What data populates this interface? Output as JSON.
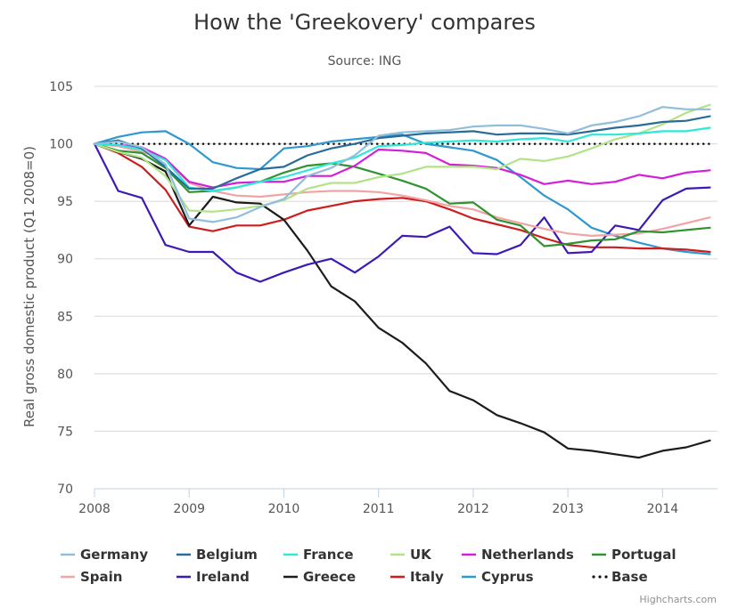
{
  "chart_data": {
    "type": "line",
    "title": "How the 'Greekovery' compares",
    "subtitle": "Source: ING",
    "ylabel": "Real gross domestic product (Q1 2008=0)",
    "xlabel": "",
    "x": [
      2008.0,
      2008.25,
      2008.5,
      2008.75,
      2009.0,
      2009.25,
      2009.5,
      2009.75,
      2010.0,
      2010.25,
      2010.5,
      2010.75,
      2011.0,
      2011.25,
      2011.5,
      2011.75,
      2012.0,
      2012.25,
      2012.5,
      2012.75,
      2013.0,
      2013.25,
      2013.5,
      2013.75,
      2014.0,
      2014.25,
      2014.5
    ],
    "xlim": [
      2008,
      2014.58
    ],
    "ylim": [
      70,
      105
    ],
    "x_ticks": [
      "2008",
      "2009",
      "2010",
      "2011",
      "2012",
      "2013",
      "2014"
    ],
    "y_ticks": [
      "70",
      "75",
      "80",
      "85",
      "90",
      "95",
      "100",
      "105"
    ],
    "grid": true,
    "legend_position": "bottom",
    "series": [
      {
        "name": "Germany",
        "color": "#90bedb",
        "values": [
          100,
          100.2,
          99.7,
          98.2,
          93.5,
          93.2,
          93.6,
          94.5,
          95.2,
          97.2,
          97.9,
          99,
          100.7,
          101,
          101.1,
          101.2,
          101.5,
          101.6,
          101.6,
          101.3,
          100.9,
          101.6,
          101.9,
          102.4,
          103.2,
          103,
          103
        ]
      },
      {
        "name": "Belgium",
        "color": "#2a6c99",
        "values": [
          100,
          100.3,
          99.6,
          98,
          96.1,
          96.1,
          97,
          97.8,
          98,
          99,
          99.6,
          100,
          100.5,
          100.7,
          100.9,
          101,
          101.1,
          100.8,
          100.9,
          100.9,
          100.8,
          101.1,
          101.4,
          101.6,
          101.9,
          102,
          102.4
        ]
      },
      {
        "name": "France",
        "color": "#2ee8d8",
        "values": [
          100,
          99.9,
          99.5,
          98.6,
          96.2,
          95.9,
          96.2,
          96.7,
          97.1,
          97.7,
          98.3,
          98.8,
          99.8,
          99.9,
          100.1,
          100.2,
          100.3,
          100.2,
          100.4,
          100.5,
          100.2,
          100.8,
          100.8,
          100.9,
          101.1,
          101.1,
          101.4
        ]
      },
      {
        "name": "UK",
        "color": "#b3e389",
        "values": [
          100,
          99.3,
          98.8,
          97.2,
          94.2,
          94.1,
          94.3,
          94.6,
          95.1,
          96.1,
          96.6,
          96.6,
          97.1,
          97.4,
          98,
          98,
          98,
          97.8,
          98.7,
          98.5,
          98.9,
          99.6,
          100.4,
          100.9,
          101.7,
          102.7,
          103.4
        ]
      },
      {
        "name": "Netherlands",
        "color": "#d21fd9",
        "values": [
          100,
          99.9,
          99.7,
          98.7,
          96.7,
          96.2,
          96.6,
          96.7,
          96.7,
          97.2,
          97.2,
          98.1,
          99.5,
          99.4,
          99.2,
          98.2,
          98.1,
          97.9,
          97.3,
          96.5,
          96.8,
          96.5,
          96.7,
          97.3,
          97,
          97.5,
          97.7
        ]
      },
      {
        "name": "Portugal",
        "color": "#2f932f",
        "values": [
          100,
          99.4,
          99.2,
          97.9,
          95.8,
          95.9,
          96.2,
          96.7,
          97.5,
          98.1,
          98.3,
          98,
          97.4,
          96.8,
          96.1,
          94.8,
          94.9,
          93.4,
          92.9,
          91.1,
          91.3,
          91.6,
          91.7,
          92.4,
          92.3,
          92.5,
          92.7
        ]
      },
      {
        "name": "Spain",
        "color": "#f0a4a4",
        "values": [
          100,
          99.8,
          99.3,
          98.7,
          96.6,
          95.9,
          95.5,
          95.4,
          95.6,
          95.8,
          95.9,
          95.9,
          95.8,
          95.5,
          95.1,
          94.6,
          94.3,
          93.6,
          93.1,
          92.6,
          92.2,
          92,
          92.1,
          92.2,
          92.6,
          93.1,
          93.6
        ]
      },
      {
        "name": "Ireland",
        "color": "#3e1ab4",
        "values": [
          100,
          95.9,
          95.3,
          91.2,
          90.6,
          90.6,
          88.8,
          88,
          88.8,
          89.5,
          90,
          88.8,
          90.2,
          92,
          91.9,
          92.8,
          90.5,
          90.4,
          91.2,
          93.6,
          90.5,
          90.6,
          92.9,
          92.5,
          95.1,
          96.1,
          96.2
        ]
      },
      {
        "name": "Greece",
        "color": "#1c1c1c",
        "values": [
          100,
          99.3,
          98.7,
          97.6,
          92.9,
          95.4,
          94.9,
          94.8,
          93.4,
          90.7,
          87.6,
          86.3,
          84,
          82.7,
          80.9,
          78.5,
          77.7,
          76.4,
          75.7,
          74.9,
          73.5,
          73.3,
          73,
          72.7,
          73.3,
          73.6,
          74.2
        ]
      },
      {
        "name": "Italy",
        "color": "#cc1e1e",
        "values": [
          100,
          99.2,
          98,
          96,
          92.8,
          92.4,
          92.9,
          92.9,
          93.4,
          94.2,
          94.6,
          95,
          95.2,
          95.3,
          95,
          94.3,
          93.5,
          93,
          92.5,
          91.8,
          91.2,
          91,
          91,
          90.9,
          90.9,
          90.8,
          90.6
        ]
      },
      {
        "name": "Cyprus",
        "color": "#2f99cf",
        "values": [
          100,
          100.6,
          101,
          101.1,
          100,
          98.4,
          97.9,
          97.8,
          99.6,
          99.8,
          100.2,
          100.4,
          100.6,
          100.8,
          100,
          99.7,
          99.4,
          98.6,
          97.1,
          95.5,
          94.3,
          92.7,
          92,
          91.4,
          90.9,
          90.6,
          90.4
        ]
      },
      {
        "name": "Base",
        "color": "#111111",
        "dotted": true,
        "values": [
          100,
          100,
          100,
          100,
          100,
          100,
          100,
          100,
          100,
          100,
          100,
          100,
          100,
          100,
          100,
          100,
          100,
          100,
          100,
          100,
          100,
          100,
          100,
          100,
          100,
          100,
          100
        ]
      }
    ]
  },
  "credits": "Highcharts.com"
}
